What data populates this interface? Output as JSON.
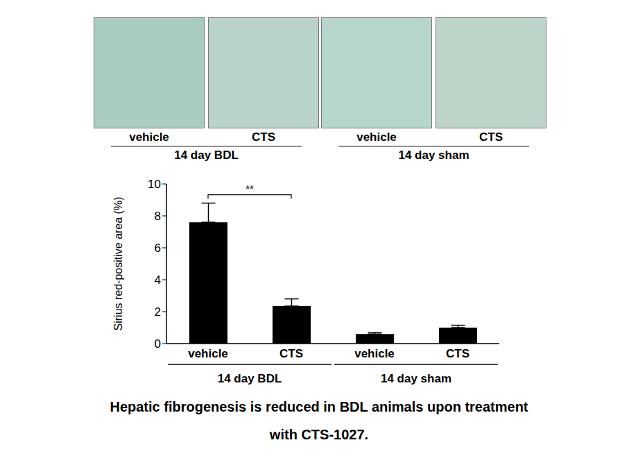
{
  "chart_data": {
    "type": "bar",
    "categories": [
      "vehicle",
      "CTS",
      "vehicle",
      "CTS"
    ],
    "values": [
      7.6,
      2.35,
      0.6,
      1.0
    ],
    "errors": [
      1.2,
      0.45,
      0.1,
      0.15
    ],
    "color": "#000000",
    "y_label": "Sirius red-positive area (%)",
    "ylim": [
      0,
      10
    ],
    "yticks": [
      0,
      2,
      4,
      6,
      8,
      10
    ],
    "grid": false,
    "groups": [
      {
        "label": "14 day BDL",
        "from": 0,
        "to": 1
      },
      {
        "label": "14 day sham",
        "from": 2,
        "to": 3
      }
    ],
    "annotations": [
      {
        "text": "**",
        "from": 0,
        "to": 1
      }
    ],
    "caption": "Hepatic fibrogenesis is reduced in BDL animals upon treatment with CTS-1027."
  },
  "histology": {
    "groups": [
      {
        "label": "14 day BDL",
        "panels": [
          "vehicle",
          "CTS"
        ]
      },
      {
        "label": "14 day sham",
        "panels": [
          "vehicle",
          "CTS"
        ]
      }
    ]
  }
}
